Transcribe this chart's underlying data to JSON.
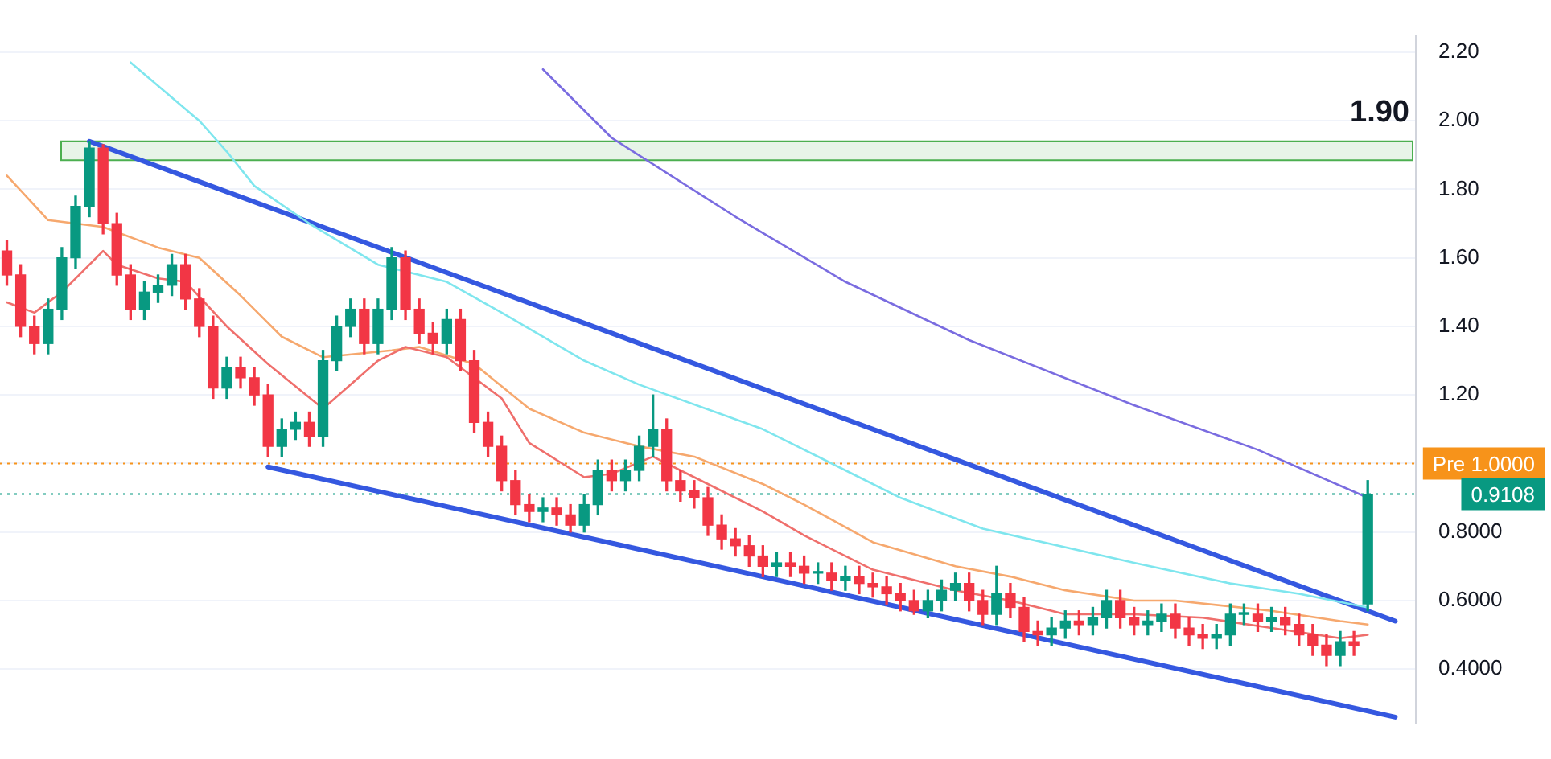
{
  "chart_data": {
    "type": "candlestick",
    "categories": [
      null,
      null,
      null,
      null,
      null,
      null,
      null,
      null,
      null,
      null,
      null,
      null,
      null,
      null,
      null,
      null,
      null,
      null,
      null,
      null,
      null,
      null,
      null,
      null,
      null,
      null,
      null,
      null,
      null,
      null,
      null,
      null,
      null,
      null,
      null,
      null,
      null,
      null,
      null,
      null,
      null,
      null,
      null,
      null,
      null,
      null,
      null,
      null,
      null,
      null,
      null,
      null,
      null,
      null,
      null,
      null,
      null,
      null,
      null,
      null,
      null,
      null,
      null,
      null,
      null,
      null,
      null,
      null,
      null,
      null,
      null,
      null,
      null,
      null,
      null,
      null,
      null,
      null,
      null,
      null,
      null,
      null,
      null,
      null,
      null,
      null,
      null,
      null,
      null,
      null,
      null,
      null,
      null,
      null,
      null,
      null,
      null,
      null,
      null,
      null,
      null,
      null,
      null
    ],
    "ohlc": [
      [
        1.62,
        1.65,
        1.52,
        1.55
      ],
      [
        1.55,
        1.58,
        1.37,
        1.4
      ],
      [
        1.4,
        1.43,
        1.32,
        1.35
      ],
      [
        1.35,
        1.48,
        1.32,
        1.45
      ],
      [
        1.45,
        1.63,
        1.42,
        1.6
      ],
      [
        1.6,
        1.78,
        1.57,
        1.75
      ],
      [
        1.75,
        1.94,
        1.72,
        1.92
      ],
      [
        1.92,
        1.93,
        1.67,
        1.7
      ],
      [
        1.7,
        1.73,
        1.52,
        1.55
      ],
      [
        1.55,
        1.58,
        1.42,
        1.45
      ],
      [
        1.45,
        1.53,
        1.42,
        1.5
      ],
      [
        1.5,
        1.55,
        1.47,
        1.52
      ],
      [
        1.52,
        1.61,
        1.49,
        1.58
      ],
      [
        1.58,
        1.61,
        1.45,
        1.48
      ],
      [
        1.48,
        1.51,
        1.37,
        1.4
      ],
      [
        1.4,
        1.43,
        1.19,
        1.22
      ],
      [
        1.22,
        1.31,
        1.19,
        1.28
      ],
      [
        1.28,
        1.31,
        1.22,
        1.25
      ],
      [
        1.25,
        1.28,
        1.17,
        1.2
      ],
      [
        1.2,
        1.23,
        1.02,
        1.05
      ],
      [
        1.05,
        1.13,
        1.02,
        1.1
      ],
      [
        1.1,
        1.15,
        1.07,
        1.12
      ],
      [
        1.12,
        1.15,
        1.05,
        1.08
      ],
      [
        1.08,
        1.33,
        1.05,
        1.3
      ],
      [
        1.3,
        1.43,
        1.27,
        1.4
      ],
      [
        1.4,
        1.48,
        1.37,
        1.45
      ],
      [
        1.45,
        1.48,
        1.32,
        1.35
      ],
      [
        1.35,
        1.48,
        1.32,
        1.45
      ],
      [
        1.45,
        1.63,
        1.42,
        1.6
      ],
      [
        1.6,
        1.62,
        1.42,
        1.45
      ],
      [
        1.45,
        1.48,
        1.35,
        1.38
      ],
      [
        1.38,
        1.41,
        1.32,
        1.35
      ],
      [
        1.35,
        1.45,
        1.32,
        1.42
      ],
      [
        1.42,
        1.45,
        1.27,
        1.3
      ],
      [
        1.3,
        1.33,
        1.09,
        1.12
      ],
      [
        1.12,
        1.15,
        1.02,
        1.05
      ],
      [
        1.05,
        1.08,
        0.92,
        0.95
      ],
      [
        0.95,
        0.98,
        0.85,
        0.88
      ],
      [
        0.88,
        0.91,
        0.83,
        0.86
      ],
      [
        0.86,
        0.9,
        0.83,
        0.87
      ],
      [
        0.87,
        0.9,
        0.82,
        0.85
      ],
      [
        0.85,
        0.88,
        0.8,
        0.82
      ],
      [
        0.82,
        0.91,
        0.8,
        0.88
      ],
      [
        0.88,
        1.01,
        0.85,
        0.98
      ],
      [
        0.98,
        1.01,
        0.92,
        0.95
      ],
      [
        0.95,
        1.01,
        0.92,
        0.98
      ],
      [
        0.98,
        1.08,
        0.95,
        1.05
      ],
      [
        1.05,
        1.2,
        1.02,
        1.1
      ],
      [
        1.1,
        1.13,
        0.92,
        0.95
      ],
      [
        0.95,
        0.98,
        0.89,
        0.92
      ],
      [
        0.92,
        0.95,
        0.87,
        0.9
      ],
      [
        0.9,
        0.93,
        0.79,
        0.82
      ],
      [
        0.82,
        0.85,
        0.75,
        0.78
      ],
      [
        0.78,
        0.81,
        0.73,
        0.76
      ],
      [
        0.76,
        0.79,
        0.7,
        0.73
      ],
      [
        0.73,
        0.76,
        0.67,
        0.7
      ],
      [
        0.7,
        0.74,
        0.67,
        0.71
      ],
      [
        0.71,
        0.74,
        0.67,
        0.7
      ],
      [
        0.7,
        0.73,
        0.65,
        0.68
      ],
      [
        0.68,
        0.71,
        0.65,
        0.68
      ],
      [
        0.68,
        0.71,
        0.63,
        0.66
      ],
      [
        0.66,
        0.7,
        0.63,
        0.67
      ],
      [
        0.67,
        0.7,
        0.62,
        0.65
      ],
      [
        0.65,
        0.68,
        0.61,
        0.64
      ],
      [
        0.64,
        0.67,
        0.59,
        0.62
      ],
      [
        0.62,
        0.65,
        0.57,
        0.6
      ],
      [
        0.6,
        0.63,
        0.56,
        0.57
      ],
      [
        0.57,
        0.63,
        0.55,
        0.6
      ],
      [
        0.6,
        0.66,
        0.57,
        0.63
      ],
      [
        0.63,
        0.68,
        0.6,
        0.65
      ],
      [
        0.65,
        0.68,
        0.57,
        0.6
      ],
      [
        0.6,
        0.63,
        0.53,
        0.56
      ],
      [
        0.56,
        0.7,
        0.53,
        0.62
      ],
      [
        0.62,
        0.65,
        0.55,
        0.58
      ],
      [
        0.58,
        0.61,
        0.48,
        0.51
      ],
      [
        0.51,
        0.54,
        0.47,
        0.5
      ],
      [
        0.5,
        0.55,
        0.47,
        0.52
      ],
      [
        0.52,
        0.57,
        0.49,
        0.54
      ],
      [
        0.54,
        0.57,
        0.5,
        0.53
      ],
      [
        0.53,
        0.58,
        0.5,
        0.55
      ],
      [
        0.55,
        0.63,
        0.52,
        0.6
      ],
      [
        0.6,
        0.63,
        0.52,
        0.55
      ],
      [
        0.55,
        0.58,
        0.5,
        0.53
      ],
      [
        0.53,
        0.57,
        0.5,
        0.54
      ],
      [
        0.54,
        0.59,
        0.51,
        0.56
      ],
      [
        0.56,
        0.59,
        0.49,
        0.52
      ],
      [
        0.52,
        0.55,
        0.47,
        0.5
      ],
      [
        0.5,
        0.53,
        0.46,
        0.49
      ],
      [
        0.49,
        0.53,
        0.46,
        0.5
      ],
      [
        0.5,
        0.59,
        0.47,
        0.56
      ],
      [
        0.56,
        0.59,
        0.53,
        0.56
      ],
      [
        0.56,
        0.59,
        0.51,
        0.54
      ],
      [
        0.54,
        0.58,
        0.51,
        0.55
      ],
      [
        0.55,
        0.58,
        0.5,
        0.53
      ],
      [
        0.53,
        0.56,
        0.47,
        0.5
      ],
      [
        0.5,
        0.53,
        0.44,
        0.47
      ],
      [
        0.47,
        0.5,
        0.41,
        0.44
      ],
      [
        0.44,
        0.51,
        0.41,
        0.48
      ],
      [
        0.48,
        0.51,
        0.44,
        0.47
      ],
      [
        0.59,
        0.95,
        0.57,
        0.91
      ],
      null,
      null,
      null
    ],
    "colors": [
      "#f23645",
      "#f23645",
      "#f23645",
      "#089981",
      "#089981",
      "#089981",
      "#089981",
      "#f23645",
      "#f23645",
      "#f23645",
      "#089981",
      "#089981",
      "#089981",
      "#f23645",
      "#f23645",
      "#f23645",
      "#089981",
      "#f23645",
      "#f23645",
      "#f23645",
      "#089981",
      "#089981",
      "#f23645",
      "#089981",
      "#089981",
      "#089981",
      "#f23645",
      "#089981",
      "#089981",
      "#f23645",
      "#f23645",
      "#f23645",
      "#089981",
      "#f23645",
      "#f23645",
      "#f23645",
      "#f23645",
      "#f23645",
      "#f23645",
      "#089981",
      "#f23645",
      "#f23645",
      "#089981",
      "#089981",
      "#f23645",
      "#089981",
      "#089981",
      "#089981",
      "#f23645",
      "#f23645",
      "#f23645",
      "#f23645",
      "#f23645",
      "#f23645",
      "#f23645",
      "#f23645",
      "#089981",
      "#f23645",
      "#f23645",
      "#089981",
      "#f23645",
      "#089981",
      "#f23645",
      "#f23645",
      "#f23645",
      "#f23645",
      "#f23645",
      "#089981",
      "#089981",
      "#089981",
      "#f23645",
      "#f23645",
      "#089981",
      "#f23645",
      "#f23645",
      "#f23645",
      "#089981",
      "#089981",
      "#f23645",
      "#089981",
      "#089981",
      "#f23645",
      "#f23645",
      "#089981",
      "#089981",
      "#f23645",
      "#f23645",
      "#f23645",
      "#089981",
      "#089981",
      "#089981",
      "#f23645",
      "#089981",
      "#f23645",
      "#f23645",
      "#f23645",
      "#f23645",
      "#089981",
      "#f23645",
      "#089981",
      null,
      null,
      null
    ],
    "series": [
      {
        "type": "line",
        "color": "#ef6f6c",
        "values": [
          1.47,
          null,
          1.44,
          null,
          1.5,
          null,
          null,
          1.62,
          1.58,
          null,
          null,
          1.54,
          null,
          1.53,
          null,
          null,
          1.4,
          null,
          null,
          1.29,
          null,
          null,
          null,
          1.16,
          null,
          null,
          null,
          1.3,
          null,
          1.34,
          null,
          null,
          1.31,
          null,
          null,
          null,
          1.19,
          null,
          1.06,
          null,
          null,
          null,
          0.96,
          null,
          0.97,
          null,
          null,
          1.02,
          null,
          null,
          0.96,
          null,
          null,
          null,
          null,
          0.86,
          null,
          null,
          0.79,
          null,
          null,
          null,
          null,
          0.69,
          null,
          null,
          null,
          null,
          null,
          0.63,
          null,
          null,
          null,
          0.6,
          null,
          null,
          null,
          0.56,
          null,
          null,
          null,
          null,
          0.56,
          null,
          null,
          null,
          null,
          0.55,
          null,
          null,
          null,
          null,
          0.52,
          null,
          null,
          null,
          null,
          0.49,
          null,
          0.5,
          null,
          null,
          null
        ]
      },
      {
        "type": "line",
        "color": "#f6a86e",
        "values": [
          1.84,
          null,
          null,
          1.71,
          null,
          null,
          null,
          1.69,
          null,
          null,
          null,
          1.63,
          null,
          null,
          1.6,
          null,
          null,
          1.49,
          null,
          null,
          1.37,
          null,
          null,
          1.31,
          null,
          null,
          null,
          null,
          1.33,
          null,
          1.34,
          null,
          null,
          null,
          1.29,
          null,
          null,
          null,
          1.16,
          null,
          null,
          null,
          1.09,
          null,
          null,
          null,
          1.05,
          null,
          null,
          null,
          1.02,
          null,
          null,
          null,
          null,
          0.94,
          null,
          null,
          0.88,
          null,
          null,
          null,
          null,
          0.77,
          null,
          null,
          null,
          null,
          null,
          0.7,
          null,
          null,
          null,
          0.67,
          null,
          null,
          null,
          0.63,
          null,
          null,
          null,
          null,
          0.6,
          null,
          null,
          0.6,
          null,
          null,
          null,
          null,
          null,
          null,
          0.57,
          null,
          null,
          null,
          null,
          0.54,
          null,
          0.53,
          null,
          null,
          null
        ]
      },
      {
        "type": "line",
        "color": "#7fe6ee",
        "values": [
          null,
          null,
          null,
          null,
          null,
          null,
          null,
          null,
          null,
          2.17,
          null,
          null,
          null,
          null,
          2.0,
          null,
          1.91,
          null,
          1.81,
          null,
          null,
          null,
          1.7,
          null,
          null,
          null,
          null,
          1.58,
          null,
          null,
          null,
          null,
          1.53,
          null,
          null,
          null,
          1.44,
          null,
          null,
          null,
          null,
          null,
          1.3,
          null,
          null,
          null,
          1.23,
          null,
          null,
          null,
          null,
          null,
          null,
          null,
          null,
          1.1,
          null,
          1.06,
          null,
          null,
          null,
          null,
          0.96,
          null,
          null,
          0.9,
          null,
          null,
          null,
          null,
          null,
          0.81,
          null,
          null,
          null,
          null,
          null,
          null,
          null,
          null,
          null,
          null,
          0.71,
          null,
          null,
          null,
          null,
          null,
          null,
          0.65,
          null,
          null,
          null,
          null,
          0.62,
          null,
          null,
          null,
          null,
          0.58,
          null,
          null,
          null
        ]
      },
      {
        "type": "line",
        "color": "#7a6ce0",
        "values": [
          null,
          null,
          null,
          null,
          null,
          null,
          null,
          null,
          null,
          null,
          null,
          null,
          null,
          null,
          null,
          null,
          null,
          null,
          null,
          null,
          null,
          null,
          null,
          null,
          null,
          null,
          null,
          null,
          null,
          null,
          null,
          null,
          null,
          null,
          null,
          null,
          null,
          null,
          null,
          2.15,
          null,
          null,
          null,
          null,
          1.95,
          null,
          null,
          null,
          null,
          null,
          null,
          null,
          null,
          1.72,
          null,
          null,
          null,
          null,
          null,
          null,
          null,
          1.53,
          null,
          null,
          null,
          null,
          null,
          null,
          null,
          null,
          1.36,
          null,
          null,
          null,
          null,
          null,
          null,
          null,
          null,
          null,
          null,
          null,
          1.17,
          null,
          null,
          null,
          null,
          null,
          null,
          null,
          null,
          1.04,
          null,
          null,
          null,
          null,
          null,
          null,
          null,
          0.9,
          null,
          null,
          null
        ]
      },
      {
        "type": "line",
        "color": "#3558e0",
        "values": [
          null,
          null,
          null,
          null,
          null,
          null,
          1.94,
          null,
          null,
          null,
          null,
          null,
          null,
          null,
          null,
          null,
          null,
          null,
          null,
          null,
          null,
          null,
          null,
          null,
          null,
          null,
          null,
          null,
          null,
          null,
          null,
          null,
          null,
          null,
          null,
          null,
          null,
          null,
          null,
          null,
          null,
          null,
          null,
          null,
          null,
          null,
          null,
          null,
          null,
          null,
          null,
          null,
          null,
          null,
          null,
          null,
          null,
          null,
          null,
          null,
          null,
          null,
          null,
          null,
          null,
          null,
          null,
          null,
          null,
          null,
          null,
          null,
          null,
          null,
          null,
          null,
          null,
          null,
          null,
          null,
          null,
          null,
          null,
          null,
          null,
          null,
          null,
          null,
          null,
          null,
          null,
          null,
          null,
          null,
          null,
          null,
          null,
          null,
          null,
          null,
          null,
          0.54,
          null
        ]
      },
      {
        "type": "line",
        "color": "#3558e0",
        "values": [
          null,
          null,
          null,
          null,
          null,
          null,
          null,
          null,
          null,
          null,
          null,
          null,
          null,
          null,
          null,
          null,
          null,
          null,
          null,
          0.99,
          null,
          null,
          null,
          null,
          null,
          null,
          null,
          null,
          null,
          null,
          null,
          null,
          null,
          null,
          null,
          null,
          null,
          null,
          null,
          null,
          null,
          null,
          null,
          null,
          null,
          null,
          null,
          null,
          null,
          null,
          null,
          null,
          null,
          null,
          null,
          null,
          null,
          null,
          null,
          null,
          null,
          null,
          null,
          null,
          null,
          null,
          null,
          null,
          null,
          null,
          null,
          null,
          null,
          null,
          null,
          null,
          null,
          null,
          null,
          null,
          null,
          null,
          null,
          null,
          null,
          null,
          null,
          null,
          null,
          null,
          null,
          null,
          null,
          null,
          null,
          null,
          null,
          null,
          null,
          null,
          null,
          0.26,
          null
        ]
      }
    ],
    "ylim": [
      0.24,
      2.25
    ],
    "yticks": [
      {
        "value": 0.4,
        "label": "0.4000"
      },
      {
        "value": 0.6,
        "label": "0.6000"
      },
      {
        "value": 0.8,
        "label": "0.8000"
      },
      {
        "value": 1.0,
        "label": null
      },
      {
        "value": 1.2,
        "label": "1.20"
      },
      {
        "value": 1.4,
        "label": "1.40"
      },
      {
        "value": 1.6,
        "label": "1.60"
      },
      {
        "value": 1.8,
        "label": "1.80"
      },
      {
        "value": 2.0,
        "label": "2.00"
      },
      {
        "value": 2.2,
        "label": "2.20"
      }
    ],
    "ref_lines": [
      {
        "axis": "y",
        "value": 1.0,
        "label": "Pre 1.0000",
        "color": "#f7931a",
        "line_style": "dotted"
      },
      {
        "axis": "y",
        "value": 0.9108,
        "label": "0.9108",
        "color": "#089981",
        "line_style": "dotted"
      }
    ],
    "bands": [
      {
        "axis": "y",
        "from": 1.885,
        "to": 1.94,
        "label": "1.90",
        "color": "#4caf50"
      }
    ],
    "grid": "y",
    "tick_labels": "y",
    "legend": false,
    "marker": "none"
  }
}
